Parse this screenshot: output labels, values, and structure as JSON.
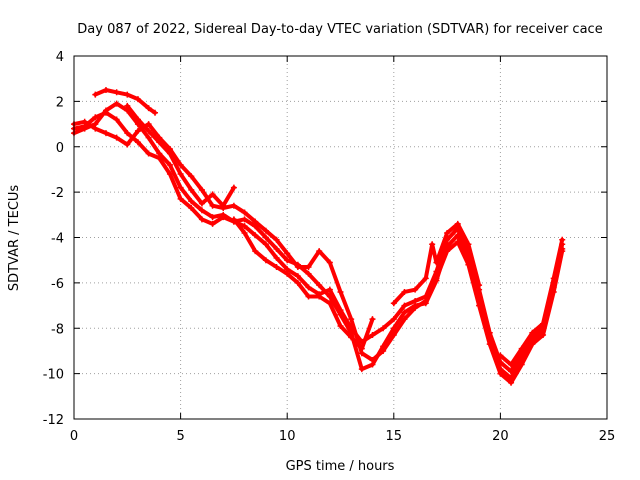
{
  "chart_data": {
    "type": "scatter",
    "title": "Day 087 of 2022, Sidereal Day-to-day VTEC variation (SDTVAR) for receiver cace",
    "xlabel": "GPS time / hours",
    "ylabel": "SDTVAR / TECUs",
    "xlim": [
      0,
      25
    ],
    "ylim": [
      -12,
      4
    ],
    "xticks": [
      0,
      5,
      10,
      15,
      20,
      25
    ],
    "yticks": [
      -12,
      -10,
      -8,
      -6,
      -4,
      -2,
      0,
      2,
      4
    ],
    "grid": true,
    "marker": "+",
    "color": "#ff0000",
    "series": [
      {
        "name": "trace-1",
        "points": [
          [
            0.0,
            0.6
          ],
          [
            0.5,
            0.8
          ],
          [
            1.0,
            1.0
          ],
          [
            1.5,
            1.6
          ],
          [
            2.0,
            1.9
          ],
          [
            2.5,
            1.6
          ],
          [
            3.0,
            1.0
          ],
          [
            3.5,
            0.4
          ],
          [
            4.0,
            -0.3
          ],
          [
            4.5,
            -0.8
          ],
          [
            5.0,
            -1.8
          ],
          [
            5.5,
            -2.4
          ],
          [
            6.0,
            -2.8
          ],
          [
            6.5,
            -3.1
          ],
          [
            7.0,
            -3.0
          ],
          [
            7.5,
            -3.3
          ],
          [
            8.0,
            -3.5
          ],
          [
            8.5,
            -3.9
          ],
          [
            9.0,
            -4.3
          ],
          [
            9.5,
            -4.9
          ],
          [
            10.0,
            -5.4
          ],
          [
            10.5,
            -5.7
          ],
          [
            11.0,
            -6.2
          ],
          [
            11.5,
            -6.5
          ],
          [
            12.0,
            -6.3
          ],
          [
            12.5,
            -7.2
          ],
          [
            13.0,
            -8.0
          ],
          [
            13.5,
            -8.6
          ],
          [
            14.0,
            -8.3
          ],
          [
            14.5,
            -8.0
          ],
          [
            15.0,
            -7.6
          ],
          [
            15.5,
            -7.0
          ],
          [
            16.0,
            -6.8
          ],
          [
            16.5,
            -6.6
          ],
          [
            17.0,
            -5.5
          ],
          [
            17.5,
            -4.1
          ],
          [
            18.0,
            -3.6
          ],
          [
            18.5,
            -4.6
          ],
          [
            19.0,
            -6.3
          ],
          [
            19.5,
            -8.2
          ],
          [
            20.0,
            -9.5
          ],
          [
            20.5,
            -9.9
          ],
          [
            21.0,
            -9.1
          ],
          [
            21.5,
            -8.4
          ],
          [
            22.0,
            -8.0
          ],
          [
            22.5,
            -6.0
          ],
          [
            22.9,
            -4.3
          ]
        ]
      },
      {
        "name": "trace-2",
        "points": [
          [
            0.0,
            1.0
          ],
          [
            0.5,
            1.1
          ],
          [
            1.0,
            0.8
          ],
          [
            1.5,
            0.6
          ],
          [
            2.0,
            0.4
          ],
          [
            2.5,
            0.1
          ],
          [
            3.0,
            0.7
          ],
          [
            3.5,
            1.0
          ],
          [
            4.0,
            0.4
          ],
          [
            4.5,
            -0.1
          ],
          [
            5.0,
            -0.8
          ],
          [
            5.5,
            -1.3
          ],
          [
            6.0,
            -1.9
          ],
          [
            6.5,
            -2.6
          ],
          [
            7.0,
            -2.7
          ],
          [
            7.5,
            -2.6
          ],
          [
            8.0,
            -2.9
          ],
          [
            8.5,
            -3.3
          ],
          [
            9.0,
            -3.7
          ],
          [
            9.5,
            -4.1
          ],
          [
            10.0,
            -4.7
          ],
          [
            10.5,
            -5.3
          ],
          [
            11.0,
            -5.3
          ],
          [
            11.5,
            -4.6
          ],
          [
            12.0,
            -5.1
          ],
          [
            12.5,
            -6.4
          ],
          [
            13.0,
            -7.6
          ],
          [
            13.5,
            -9.1
          ],
          [
            14.0,
            -9.4
          ],
          [
            14.5,
            -9.0
          ],
          [
            15.0,
            -8.3
          ],
          [
            15.5,
            -7.6
          ],
          [
            16.0,
            -7.1
          ],
          [
            16.5,
            -6.8
          ],
          [
            17.0,
            -5.8
          ],
          [
            17.5,
            -4.6
          ],
          [
            18.0,
            -4.2
          ],
          [
            18.5,
            -5.2
          ],
          [
            19.0,
            -7.0
          ],
          [
            19.5,
            -8.7
          ],
          [
            20.0,
            -10.0
          ],
          [
            20.5,
            -10.4
          ],
          [
            21.0,
            -9.6
          ],
          [
            21.5,
            -8.7
          ],
          [
            22.0,
            -8.3
          ],
          [
            22.5,
            -6.4
          ],
          [
            22.9,
            -4.6
          ]
        ]
      },
      {
        "name": "trace-3",
        "points": [
          [
            0.0,
            0.8
          ],
          [
            0.5,
            0.9
          ],
          [
            1.0,
            1.3
          ],
          [
            1.5,
            1.5
          ],
          [
            2.0,
            1.2
          ],
          [
            2.5,
            0.6
          ],
          [
            3.0,
            0.2
          ],
          [
            3.5,
            -0.3
          ],
          [
            4.0,
            -0.5
          ],
          [
            4.5,
            -1.2
          ],
          [
            5.0,
            -2.3
          ],
          [
            5.5,
            -2.7
          ],
          [
            6.0,
            -3.2
          ],
          [
            6.5,
            -3.4
          ],
          [
            7.0,
            -3.1
          ],
          [
            7.5,
            -3.3
          ],
          [
            8.0,
            -3.2
          ],
          [
            8.5,
            -3.5
          ],
          [
            9.0,
            -4.0
          ],
          [
            9.5,
            -4.5
          ],
          [
            10.0,
            -5.0
          ],
          [
            10.5,
            -5.2
          ],
          [
            11.0,
            -5.6
          ],
          [
            11.5,
            -6.1
          ],
          [
            12.0,
            -6.6
          ],
          [
            12.5,
            -7.4
          ],
          [
            13.0,
            -8.2
          ],
          [
            13.5,
            -9.8
          ],
          [
            14.0,
            -9.6
          ],
          [
            14.5,
            -8.8
          ],
          [
            15.0,
            -8.0
          ],
          [
            15.5,
            -7.3
          ],
          [
            16.0,
            -7.0
          ],
          [
            16.5,
            -6.9
          ],
          [
            17.0,
            -5.9
          ],
          [
            17.5,
            -4.4
          ],
          [
            18.0,
            -3.9
          ],
          [
            18.5,
            -4.9
          ],
          [
            19.0,
            -6.6
          ],
          [
            19.5,
            -8.5
          ],
          [
            20.0,
            -9.8
          ],
          [
            20.5,
            -10.2
          ],
          [
            21.0,
            -9.3
          ],
          [
            21.5,
            -8.6
          ],
          [
            22.0,
            -8.1
          ],
          [
            22.5,
            -6.2
          ],
          [
            22.9,
            -4.5
          ]
        ]
      },
      {
        "name": "trace-4",
        "points": [
          [
            1.0,
            2.3
          ],
          [
            1.5,
            2.5
          ],
          [
            2.0,
            2.4
          ],
          [
            2.5,
            2.3
          ],
          [
            3.0,
            2.1
          ],
          [
            3.5,
            1.7
          ],
          [
            3.8,
            1.5
          ]
        ]
      },
      {
        "name": "trace-5",
        "points": [
          [
            2.5,
            1.8
          ],
          [
            3.0,
            1.2
          ],
          [
            3.5,
            0.7
          ],
          [
            4.0,
            0.2
          ],
          [
            4.5,
            -0.3
          ],
          [
            5.0,
            -1.2
          ],
          [
            5.5,
            -1.9
          ],
          [
            6.0,
            -2.5
          ],
          [
            6.5,
            -2.1
          ],
          [
            7.0,
            -2.6
          ],
          [
            7.5,
            -1.8
          ]
        ]
      },
      {
        "name": "trace-6",
        "points": [
          [
            7.5,
            -3.2
          ],
          [
            8.0,
            -3.8
          ],
          [
            8.5,
            -4.6
          ],
          [
            9.0,
            -5.0
          ],
          [
            9.5,
            -5.3
          ],
          [
            10.0,
            -5.6
          ],
          [
            10.5,
            -6.0
          ],
          [
            11.0,
            -6.6
          ],
          [
            11.5,
            -6.6
          ],
          [
            12.0,
            -6.9
          ],
          [
            12.5,
            -7.9
          ],
          [
            13.0,
            -8.4
          ],
          [
            13.5,
            -8.9
          ],
          [
            14.0,
            -7.6
          ]
        ]
      },
      {
        "name": "trace-7",
        "points": [
          [
            15.0,
            -6.9
          ],
          [
            15.5,
            -6.4
          ],
          [
            16.0,
            -6.3
          ],
          [
            16.5,
            -5.8
          ],
          [
            16.8,
            -4.3
          ],
          [
            17.0,
            -5.1
          ],
          [
            17.5,
            -3.8
          ],
          [
            18.0,
            -3.4
          ],
          [
            18.5,
            -4.3
          ],
          [
            19.0,
            -6.1
          ]
        ]
      },
      {
        "name": "trace-8",
        "points": [
          [
            20.0,
            -9.2
          ],
          [
            20.5,
            -9.6
          ],
          [
            21.0,
            -8.9
          ],
          [
            21.5,
            -8.2
          ],
          [
            22.0,
            -7.8
          ],
          [
            22.5,
            -5.8
          ],
          [
            22.9,
            -4.1
          ]
        ]
      }
    ]
  }
}
